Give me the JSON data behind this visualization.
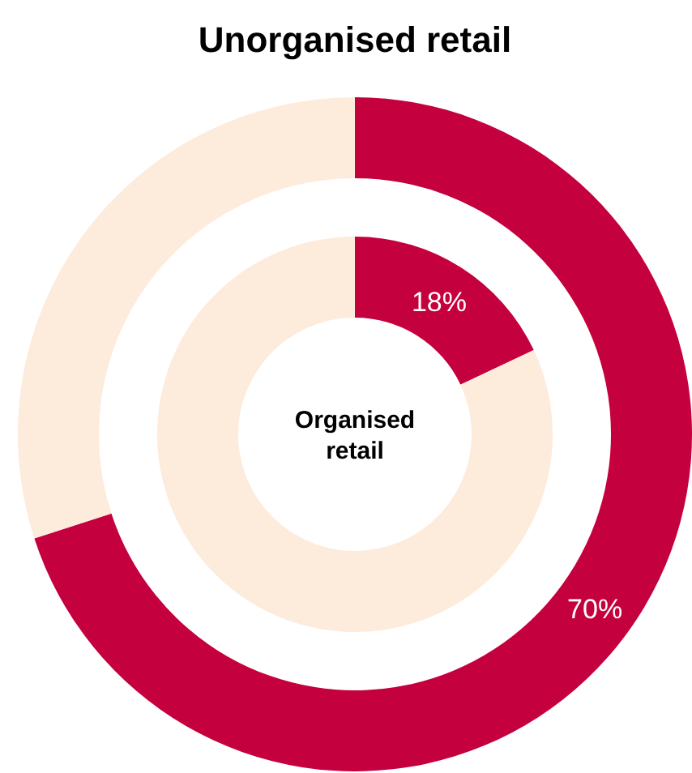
{
  "chart_data": [
    {
      "type": "donut",
      "title": "Unorganised retail",
      "categories": [
        null,
        null
      ],
      "values": [
        70,
        30
      ],
      "colors": [
        "#c5003e",
        "#fdebdc"
      ],
      "value_labels": [
        "70%",
        null
      ]
    },
    {
      "type": "donut",
      "title": "Organised retail",
      "categories": [
        null,
        null
      ],
      "values": [
        18,
        82
      ],
      "colors": [
        "#c5003e",
        "#fdebdc"
      ],
      "value_labels": [
        "18%",
        null
      ]
    }
  ]
}
